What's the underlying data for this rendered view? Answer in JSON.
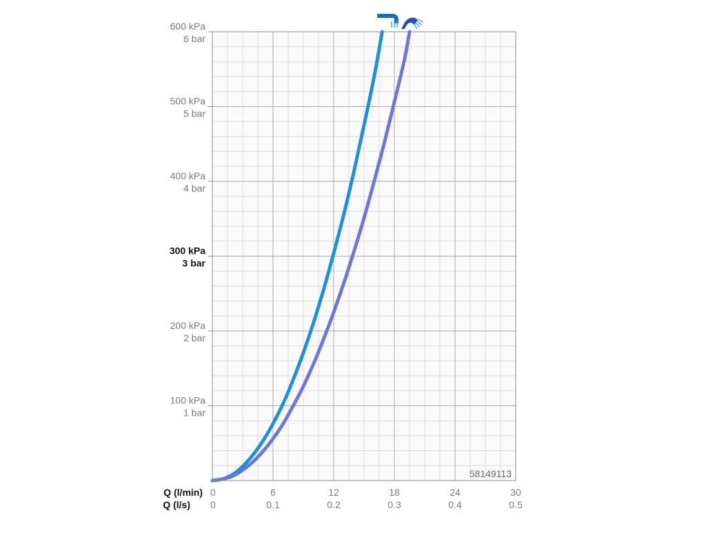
{
  "chart_data": {
    "type": "line",
    "x_axes": [
      {
        "label": "Q (l/min)",
        "ticks": [
          "0",
          "6",
          "12",
          "18",
          "24",
          "30"
        ]
      },
      {
        "label": "Q (l/s)",
        "ticks": [
          "0",
          "0.1",
          "0.2",
          "0.3",
          "0.4",
          "0.5"
        ]
      }
    ],
    "y_ticks": [
      {
        "kpa": "100 kPa",
        "bar": "1 bar",
        "value": 100,
        "bold": false
      },
      {
        "kpa": "200 kPa",
        "bar": "2 bar",
        "value": 200,
        "bold": false
      },
      {
        "kpa": "300 kPa",
        "bar": "3 bar",
        "value": 300,
        "bold": true
      },
      {
        "kpa": "400 kPa",
        "bar": "4 bar",
        "value": 400,
        "bold": false
      },
      {
        "kpa": "500 kPa",
        "bar": "5 bar",
        "value": 500,
        "bold": false
      },
      {
        "kpa": "600 kPa",
        "bar": "6 bar",
        "value": 600,
        "bold": false
      }
    ],
    "xlim": [
      0,
      30
    ],
    "ylim": [
      0,
      600
    ],
    "grid": true,
    "series": [
      {
        "icon": "bath-spout-icon",
        "color": "#1f8fd6",
        "x": [
          0,
          1,
          2,
          3,
          4,
          5,
          6,
          7,
          8,
          9,
          10,
          11,
          12,
          13,
          14,
          15,
          16,
          16.8
        ],
        "y": [
          0,
          2,
          8,
          19,
          34,
          53,
          76,
          103,
          135,
          171,
          211,
          255,
          304,
          356,
          413,
          475,
          540,
          600
        ]
      },
      {
        "icon": "shower-head-icon",
        "color": "#6b78d6",
        "x": [
          0,
          1,
          2,
          3,
          4,
          5,
          6,
          7,
          8,
          9,
          10,
          11,
          12,
          13,
          14,
          15,
          16,
          17,
          18,
          19,
          19.5
        ],
        "y": [
          0,
          2,
          6,
          14,
          25,
          39,
          56,
          76,
          100,
          126,
          156,
          189,
          225,
          264,
          306,
          351,
          400,
          451,
          506,
          563,
          600
        ]
      }
    ],
    "annotations": {
      "product_code": "58149113"
    }
  }
}
